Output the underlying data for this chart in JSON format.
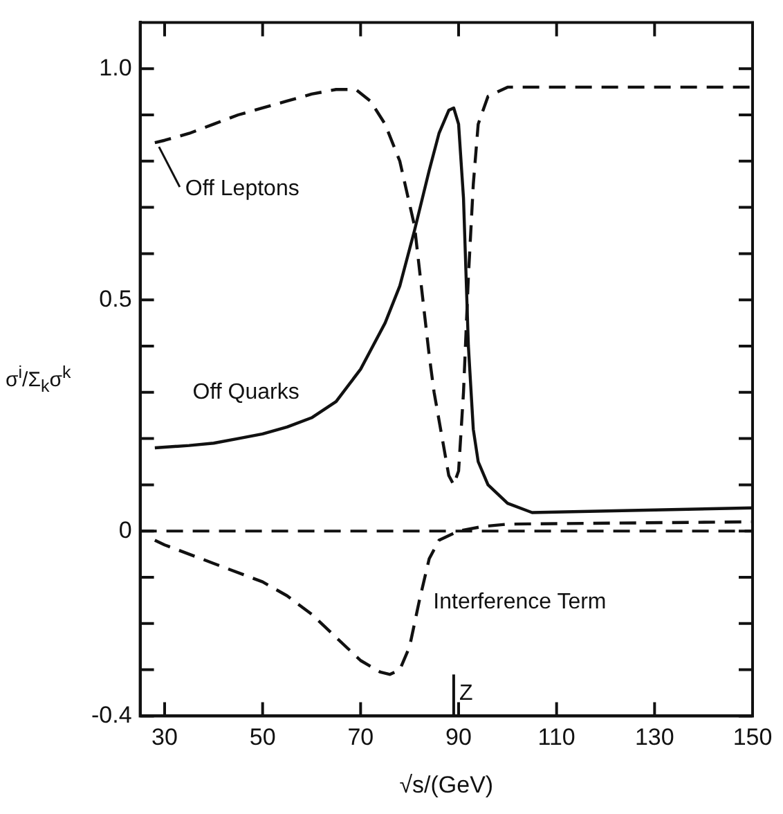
{
  "chart_data": {
    "type": "line",
    "xlabel": "√s/(GeV)",
    "ylabel": "σ$^{i}$/Σ$_{k}$σ$^{k}$",
    "xlim": [
      25,
      150
    ],
    "ylim": [
      -0.4,
      1.1
    ],
    "xticks": [
      30,
      50,
      70,
      90,
      110,
      130,
      150
    ],
    "yticks": [
      -0.4,
      {
        "value": -0.3,
        "label": null
      },
      {
        "value": -0.2,
        "label": null
      },
      {
        "value": -0.1,
        "label": null
      },
      0,
      {
        "value": 0.1,
        "label": null
      },
      {
        "value": 0.2,
        "label": null
      },
      {
        "value": 0.3,
        "label": null
      },
      {
        "value": 0.4,
        "label": null
      },
      0.5,
      {
        "value": 0.6,
        "label": null
      },
      {
        "value": 0.7,
        "label": null
      },
      {
        "value": 0.8,
        "label": null
      },
      {
        "value": 0.9,
        "label": null
      },
      {
        "value": 1.0,
        "label": "1.0"
      }
    ],
    "marker": "none",
    "series": [
      {
        "name": "Off Leptons",
        "color": "#111111",
        "line_style": "dashed",
        "x": [
          28,
          30,
          35,
          40,
          45,
          50,
          55,
          60,
          65,
          69,
          72,
          75,
          78,
          81,
          84,
          85,
          87,
          88,
          89,
          90,
          91,
          92,
          93,
          94,
          96,
          100,
          110,
          150
        ],
        "values": [
          0.84,
          0.845,
          0.86,
          0.88,
          0.9,
          0.915,
          0.93,
          0.945,
          0.955,
          0.955,
          0.93,
          0.88,
          0.8,
          0.66,
          0.38,
          0.3,
          0.18,
          0.12,
          0.1,
          0.13,
          0.3,
          0.55,
          0.75,
          0.88,
          0.94,
          0.96,
          0.96,
          0.96
        ]
      },
      {
        "name": "Off Quarks",
        "color": "#111111",
        "line_style": "solid",
        "x": [
          28,
          35,
          40,
          45,
          50,
          55,
          60,
          65,
          70,
          75,
          78,
          81,
          84,
          86,
          88,
          89,
          90,
          91,
          92,
          93,
          94,
          96,
          100,
          105,
          150
        ],
        "values": [
          0.18,
          0.185,
          0.19,
          0.2,
          0.21,
          0.225,
          0.245,
          0.28,
          0.35,
          0.45,
          0.53,
          0.65,
          0.78,
          0.86,
          0.91,
          0.915,
          0.88,
          0.72,
          0.4,
          0.22,
          0.15,
          0.1,
          0.06,
          0.04,
          0.05
        ]
      },
      {
        "name": "Interference Term",
        "color": "#111111",
        "line_style": "dashed",
        "x": [
          28,
          30,
          40,
          50,
          55,
          60,
          65,
          70,
          74,
          76,
          78,
          80,
          82,
          84,
          86,
          90,
          95,
          100,
          150
        ],
        "values": [
          -0.02,
          -0.03,
          -0.07,
          -0.11,
          -0.14,
          -0.18,
          -0.23,
          -0.28,
          -0.305,
          -0.31,
          -0.3,
          -0.25,
          -0.15,
          -0.06,
          -0.02,
          0,
          0.01,
          0.015,
          0.02
        ]
      }
    ],
    "ref_lines": [
      {
        "axis": "y",
        "value": 0,
        "line_style": "dashed",
        "color": "#111111"
      },
      {
        "axis": "x",
        "value": 89,
        "label": "Z",
        "color": "#111111"
      }
    ]
  }
}
